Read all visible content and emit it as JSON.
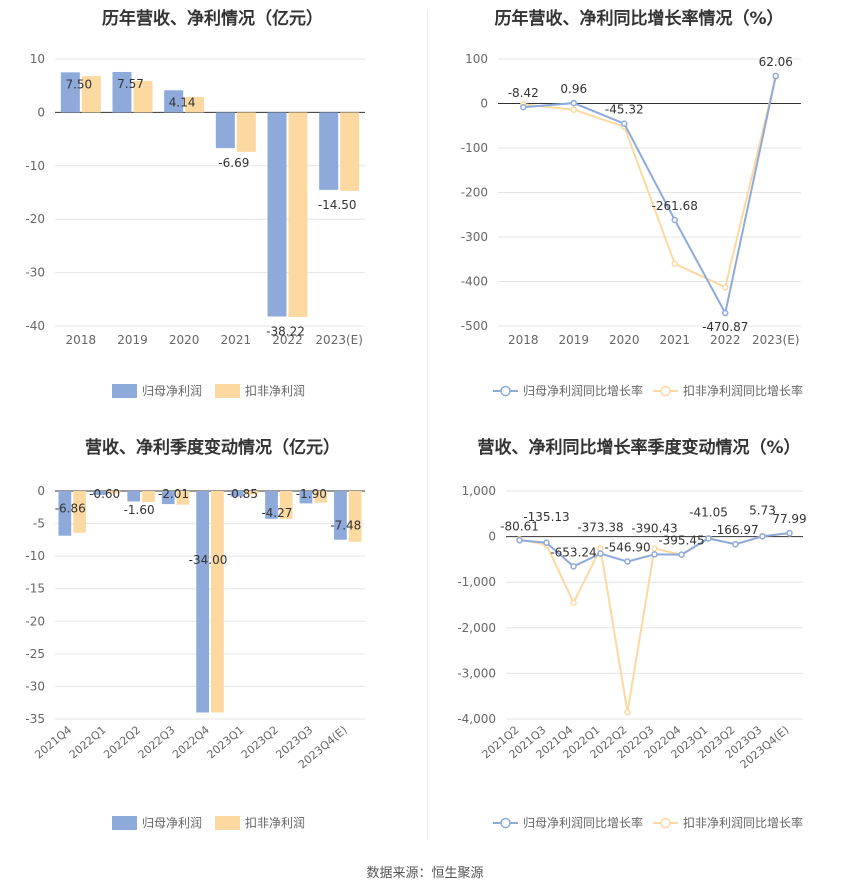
{
  "source_label": "数据来源：恒生聚源",
  "colors": {
    "series1": "#8eaadb",
    "series2": "#fcd9a1",
    "axis": "#999999",
    "grid": "#e5e5e5",
    "text": "#333333",
    "label": "#666666"
  },
  "chart_data": [
    {
      "type": "bar",
      "title": "历年营收、净利情况（亿元）",
      "categories": [
        "2018",
        "2019",
        "2020",
        "2021",
        "2022",
        "2023(E)"
      ],
      "series": [
        {
          "name": "归母净利润",
          "values": [
            7.5,
            7.57,
            4.14,
            -6.69,
            -38.22,
            -14.5
          ],
          "labels": [
            "7.50",
            "7.57",
            "4.14",
            "-6.69",
            "-38.22",
            "-14.50"
          ]
        },
        {
          "name": "扣非净利润",
          "values": [
            6.8,
            5.9,
            2.9,
            -7.4,
            -38.3,
            -14.7
          ]
        }
      ],
      "ylim": [
        -40,
        10
      ],
      "yticks": [
        10,
        0,
        -10,
        -20,
        -30,
        -40
      ],
      "ytick_labels": [
        "10",
        "0",
        "-10",
        "-20",
        "-30",
        "-40"
      ],
      "grid": true,
      "legend": "bottom"
    },
    {
      "type": "line",
      "title": "历年营收、净利同比增长率情况（%）",
      "categories": [
        "2018",
        "2019",
        "2020",
        "2021",
        "2022",
        "2023(E)"
      ],
      "series": [
        {
          "name": "归母净利润同比增长率",
          "values": [
            -8.42,
            0.96,
            -45.32,
            -261.68,
            -470.87,
            62.06
          ],
          "labels": [
            "-8.42",
            "0.96",
            "-45.32",
            "-261.68",
            "-470.87",
            "62.06"
          ]
        },
        {
          "name": "扣非净利润同比增长率",
          "values": [
            -2,
            -14,
            -52,
            -360,
            -413,
            60
          ]
        }
      ],
      "ylim": [
        -500,
        100
      ],
      "yticks": [
        100,
        0,
        -100,
        -200,
        -300,
        -400,
        -500
      ],
      "ytick_labels": [
        "100",
        "0",
        "-100",
        "-200",
        "-300",
        "-400",
        "-500"
      ],
      "grid": true,
      "legend": "bottom"
    },
    {
      "type": "bar",
      "title": "营收、净利季度变动情况（亿元）",
      "categories": [
        "2021Q4",
        "2022Q1",
        "2022Q2",
        "2022Q3",
        "2022Q4",
        "2023Q1",
        "2023Q2",
        "2023Q3",
        "2023Q4(E)"
      ],
      "series": [
        {
          "name": "归母净利润",
          "values": [
            -6.86,
            -0.6,
            -1.6,
            -2.01,
            -34.0,
            -0.85,
            -4.27,
            -1.9,
            -7.48
          ],
          "labels": [
            "-6.86",
            "-0.60",
            "-1.60",
            "-2.01",
            "-34.00",
            "-0.85",
            "-4.27",
            "-1.90",
            "-7.48"
          ]
        },
        {
          "name": "扣非净利润",
          "values": [
            -6.4,
            -0.35,
            -1.7,
            -2.1,
            -34.0,
            -0.55,
            -4.3,
            -1.8,
            -7.8
          ]
        }
      ],
      "ylim": [
        -35,
        0
      ],
      "yticks": [
        0,
        -5,
        -10,
        -15,
        -20,
        -25,
        -30,
        -35
      ],
      "ytick_labels": [
        "0",
        "-5",
        "-10",
        "-15",
        "-20",
        "-25",
        "-30",
        "-35"
      ],
      "grid": true,
      "legend": "bottom"
    },
    {
      "type": "line",
      "title": "营收、净利同比增长率季度变动情况（%）",
      "categories": [
        "2021Q2",
        "2021Q3",
        "2021Q4",
        "2022Q1",
        "2022Q2",
        "2022Q3",
        "2022Q4",
        "2023Q1",
        "2023Q2",
        "2023Q3",
        "2023Q4(E)"
      ],
      "series": [
        {
          "name": "归母净利润同比增长率",
          "values": [
            -80.61,
            -135.13,
            -653.24,
            -373.38,
            -546.9,
            -390.43,
            -395.45,
            -41.05,
            -166.97,
            5.73,
            77.99
          ],
          "labels": [
            "-80.61",
            "-135.13",
            "-653.24",
            "-373.38",
            "-546.90",
            "-390.43",
            "-395.45",
            "-41.05",
            "-166.97",
            "5.73",
            "77.99"
          ]
        },
        {
          "name": "扣非净利润同比增长率",
          "values": [
            -60,
            -180,
            -1450,
            -260,
            -3850,
            -260,
            -400,
            -30,
            -170,
            10,
            70
          ]
        }
      ],
      "ylim": [
        -4000,
        1000
      ],
      "yticks": [
        1000,
        0,
        -1000,
        -2000,
        -3000,
        -4000
      ],
      "ytick_labels": [
        "1,000",
        "0",
        "-1,000",
        "-2,000",
        "-3,000",
        "-4,000"
      ],
      "grid": true,
      "legend": "bottom"
    }
  ]
}
